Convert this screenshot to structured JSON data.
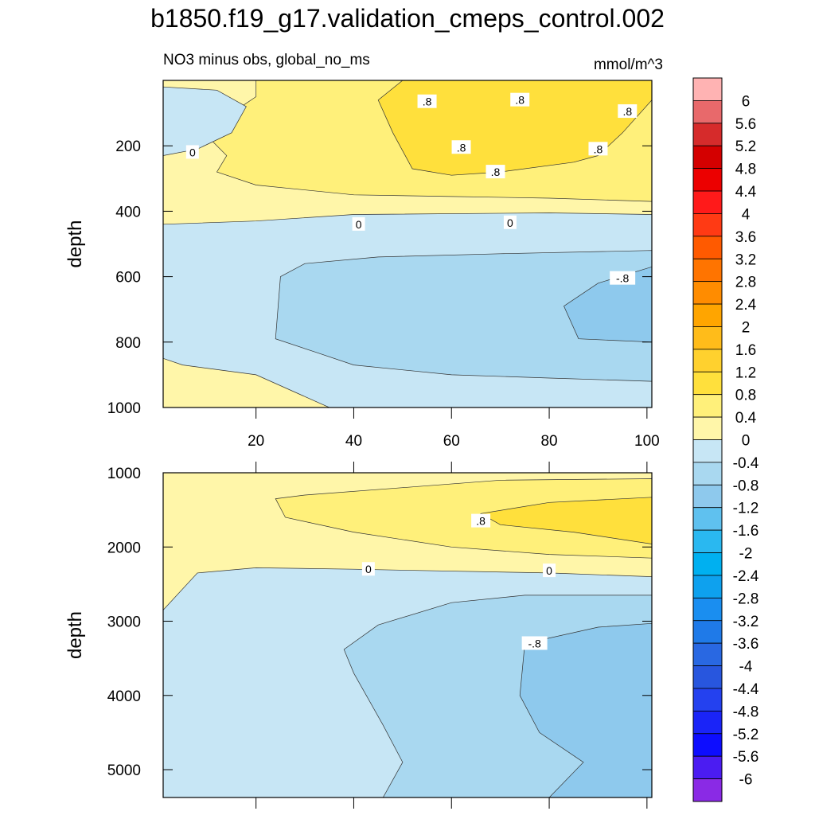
{
  "title": "b1850.f19_g17.validation_cmeps_control.002",
  "colors": {
    "frame": "#000000",
    "contour_line": "#333333",
    "label_bg": "#ffffff"
  },
  "chart_data": [
    {
      "type": "contour",
      "panel": "upper",
      "left_title": "NO3 minus obs, global_no_ms",
      "right_title": "mmol/m^3",
      "ylabel": "depth",
      "xlabel": "",
      "xlim": [
        1,
        101
      ],
      "ylim": [
        1000,
        0
      ],
      "xticks": [
        "20",
        "40",
        "60",
        "80",
        "100"
      ],
      "xtick_values": [
        20,
        40,
        60,
        80,
        100
      ],
      "yticks": [
        "200",
        "400",
        "600",
        "800",
        "1000"
      ],
      "ytick_values": [
        200,
        400,
        600,
        800,
        1000
      ],
      "regions": [
        {
          "name": "0 to 0.4",
          "color": "#fff6a9",
          "pts": [
            [
              1,
              0
            ],
            [
              101,
              0
            ],
            [
              101,
              410
            ],
            [
              80,
              405
            ],
            [
              40,
              410
            ],
            [
              20,
              430
            ],
            [
              1,
              440
            ],
            [
              1,
              850
            ],
            [
              5,
              870
            ],
            [
              20,
              900
            ],
            [
              35,
              1000
            ],
            [
              1,
              1000
            ]
          ]
        },
        {
          "name": "0.4 to 0.8",
          "color": "#fff07a",
          "pts": [
            [
              20,
              0
            ],
            [
              101,
              0
            ],
            [
              101,
              370
            ],
            [
              80,
              360
            ],
            [
              60,
              355
            ],
            [
              40,
              350
            ],
            [
              20,
              320
            ],
            [
              12,
              280
            ],
            [
              14,
              230
            ],
            [
              10,
              170
            ],
            [
              15,
              100
            ],
            [
              20,
              50
            ]
          ]
        },
        {
          "name": "0.8 to 1.2",
          "color": "#ffe03c",
          "pts": [
            [
              50,
              0
            ],
            [
              101,
              0
            ],
            [
              101,
              60
            ],
            [
              95,
              160
            ],
            [
              90,
              230
            ],
            [
              85,
              250
            ],
            [
              70,
              280
            ],
            [
              60,
              290
            ],
            [
              52,
              270
            ],
            [
              48,
              160
            ],
            [
              45,
              60
            ]
          ]
        },
        {
          "name": "0 to -0.4",
          "color": "#c7e6f5",
          "pts": [
            [
              1,
              20
            ],
            [
              12,
              30
            ],
            [
              18,
              80
            ],
            [
              15,
              160
            ],
            [
              8,
              210
            ],
            [
              1,
              230
            ]
          ]
        },
        {
          "name": "-0.4 to -0.8",
          "color": "#a9d8f0",
          "pts": [
            [
              25,
              600
            ],
            [
              30,
              560
            ],
            [
              45,
              540
            ],
            [
              70,
              530
            ],
            [
              101,
              520
            ],
            [
              101,
              920
            ],
            [
              80,
              910
            ],
            [
              60,
              900
            ],
            [
              40,
              870
            ],
            [
              32,
              830
            ],
            [
              24,
              790
            ]
          ]
        },
        {
          "name": "-0.8 to -1.2",
          "color": "#8ec9ed",
          "pts": [
            [
              101,
              570
            ],
            [
              90,
              620
            ],
            [
              83,
              690
            ],
            [
              86,
              790
            ],
            [
              101,
              800
            ]
          ]
        }
      ],
      "labels": [
        {
          "text": "0",
          "x": 7,
          "y": 220
        },
        {
          "text": "0",
          "x": 41,
          "y": 440
        },
        {
          "text": "0",
          "x": 72,
          "y": 435
        },
        {
          "text": ".8",
          "x": 55,
          "y": 65
        },
        {
          "text": ".8",
          "x": 74,
          "y": 60
        },
        {
          "text": ".8",
          "x": 96,
          "y": 95
        },
        {
          "text": ".8",
          "x": 62,
          "y": 205
        },
        {
          "text": ".8",
          "x": 69,
          "y": 280
        },
        {
          "text": ".8",
          "x": 90,
          "y": 210
        },
        {
          "text": "-.8",
          "x": 95,
          "y": 605
        }
      ]
    },
    {
      "type": "contour",
      "panel": "lower",
      "left_title": "",
      "right_title": "",
      "ylabel": "depth",
      "xlabel": "",
      "xlim": [
        1,
        101
      ],
      "ylim": [
        5375,
        1000
      ],
      "xticks": [],
      "xtick_values": [
        20,
        40,
        60,
        80,
        100
      ],
      "yticks": [
        "1000",
        "2000",
        "3000",
        "4000",
        "5000"
      ],
      "ytick_values": [
        1000,
        2000,
        3000,
        4000,
        5000
      ],
      "regions": [
        {
          "name": "0 to 0.4",
          "color": "#fff6a9",
          "pts": [
            [
              1,
              1000
            ],
            [
              101,
              1000
            ],
            [
              101,
              2400
            ],
            [
              80,
              2350
            ],
            [
              40,
              2300
            ],
            [
              20,
              2280
            ],
            [
              8,
              2350
            ],
            [
              1,
              2850
            ]
          ]
        },
        {
          "name": "0.4 to 0.8",
          "color": "#fff07a",
          "pts": [
            [
              24,
              1350
            ],
            [
              30,
              1300
            ],
            [
              50,
              1200
            ],
            [
              70,
              1100
            ],
            [
              101,
              1080
            ],
            [
              101,
              2150
            ],
            [
              80,
              2100
            ],
            [
              60,
              2000
            ],
            [
              40,
              1800
            ],
            [
              26,
              1600
            ]
          ]
        },
        {
          "name": "0.8 to 1.2",
          "color": "#ffe03c",
          "pts": [
            [
              101,
              1330
            ],
            [
              80,
              1400
            ],
            [
              66,
              1550
            ],
            [
              70,
              1700
            ],
            [
              85,
              1800
            ],
            [
              101,
              1960
            ]
          ]
        },
        {
          "name": "-0.4 to -0.8",
          "color": "#a9d8f0",
          "pts": [
            [
              101,
              2650
            ],
            [
              75,
              2650
            ],
            [
              60,
              2750
            ],
            [
              45,
              3050
            ],
            [
              38,
              3380
            ],
            [
              40,
              3700
            ],
            [
              46,
              4400
            ],
            [
              50,
              4900
            ],
            [
              46,
              5375
            ],
            [
              101,
              5375
            ]
          ]
        },
        {
          "name": "-0.8 to -1.2",
          "color": "#8ec9ed",
          "pts": [
            [
              101,
              3030
            ],
            [
              90,
              3080
            ],
            [
              75,
              3300
            ],
            [
              74,
              4000
            ],
            [
              78,
              4500
            ],
            [
              87,
              4900
            ],
            [
              80,
              5375
            ],
            [
              101,
              5375
            ]
          ]
        }
      ],
      "labels": [
        {
          "text": ".8",
          "x": 66,
          "y": 1650
        },
        {
          "text": "0",
          "x": 43,
          "y": 2300
        },
        {
          "text": "0",
          "x": 80,
          "y": 2320
        },
        {
          "text": "-.8",
          "x": 77,
          "y": 3300
        }
      ]
    }
  ],
  "colorbar": {
    "labels": [
      "6",
      "5.6",
      "5.2",
      "4.8",
      "4.4",
      "4",
      "3.6",
      "3.2",
      "2.8",
      "2.4",
      "2",
      "1.6",
      "1.2",
      "0.8",
      "0.4",
      "0",
      "-0.4",
      "-0.8",
      "-1.2",
      "-1.6",
      "-2",
      "-2.4",
      "-2.8",
      "-3.2",
      "-3.6",
      "-4",
      "-4.4",
      "-4.8",
      "-5.2",
      "-5.6",
      "-6"
    ],
    "colors": [
      "#ffb3b3",
      "#e8696b",
      "#d62b2b",
      "#d40000",
      "#ec0000",
      "#ff1a1a",
      "#ff3a14",
      "#ff5a00",
      "#ff7400",
      "#ff8c00",
      "#ffa500",
      "#ffbc1a",
      "#ffd12e",
      "#ffe03c",
      "#fff07a",
      "#fff6a9",
      "#c7e6f5",
      "#a9d8f0",
      "#8ec9ed",
      "#5fc1ef",
      "#2ab8f0",
      "#00b0f0",
      "#0ea1ee",
      "#1a8ef0",
      "#1f7ae8",
      "#2968e2",
      "#2856de",
      "#2441ef",
      "#1a24f8",
      "#0d0dff",
      "#4b1cf2",
      "#8a2ae5"
    ]
  }
}
